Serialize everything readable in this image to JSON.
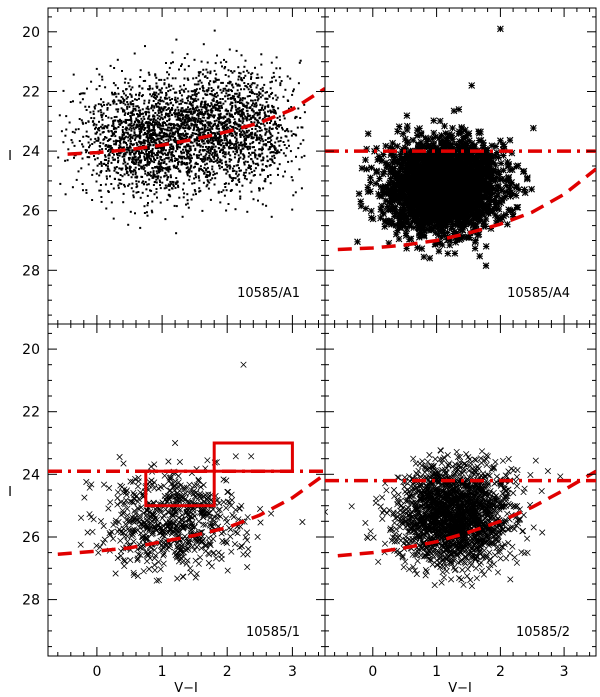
{
  "chart_data": {
    "type": "scatter",
    "xlabel": "V−I",
    "ylabel": "I",
    "xlim": [
      -0.75,
      3.5
    ],
    "ylim": [
      19.2,
      29.8
    ],
    "y_inverted": true,
    "x_ticks": [
      "0",
      "1",
      "2",
      "3"
    ],
    "y_ticks": [
      "20",
      "22",
      "24",
      "26",
      "28"
    ],
    "colors": {
      "points": "#000000",
      "curves": "#e00000"
    },
    "panels": [
      {
        "label": "10585/A1",
        "marker": "dot",
        "points": {
          "count": 3400,
          "components": [
            {
              "weight": 0.55,
              "x_mean": 0.85,
              "x_sd": 0.55,
              "y_mean": 23.6,
              "y_sd": 0.95
            },
            {
              "weight": 0.45,
              "x_mean": 2.05,
              "x_sd": 0.5,
              "y_mean": 23.2,
              "y_sd": 1.0
            }
          ],
          "x_range": [
            -0.6,
            3.2
          ],
          "y_range": [
            19.4,
            27.0
          ]
        },
        "dashed_curve": {
          "x": [
            -0.45,
            0.0,
            0.5,
            1.0,
            1.5,
            2.0,
            2.5,
            3.0,
            3.5
          ],
          "y": [
            24.1,
            24.05,
            23.95,
            23.8,
            23.6,
            23.35,
            23.05,
            22.6,
            21.9
          ]
        }
      },
      {
        "label": "10585/A4",
        "marker": "asterisk",
        "points": {
          "count": 2600,
          "components": [
            {
              "weight": 1.0,
              "x_mean": 1.1,
              "x_sd": 0.45,
              "y_mean": 25.2,
              "y_sd": 0.75
            }
          ],
          "x_range": [
            -0.7,
            3.3
          ],
          "y_range": [
            22.6,
            28.2
          ]
        },
        "outliers": [
          {
            "x": 2.0,
            "y": 19.9
          },
          {
            "x": 1.55,
            "y": 21.8
          },
          {
            "x": 1.35,
            "y": 22.6
          }
        ],
        "dashed_curve": {
          "x": [
            -0.55,
            0.0,
            0.5,
            1.0,
            1.5,
            2.0,
            2.5,
            3.0,
            3.5
          ],
          "y": [
            27.3,
            27.25,
            27.15,
            27.0,
            26.75,
            26.45,
            26.05,
            25.45,
            24.6
          ]
        },
        "dash_dot_line": {
          "y": 24.0
        }
      },
      {
        "label": "10585/1",
        "marker": "x",
        "points": {
          "count": 700,
          "components": [
            {
              "weight": 1.0,
              "x_mean": 1.15,
              "x_sd": 0.55,
              "y_mean": 25.5,
              "y_sd": 0.75
            }
          ],
          "x_range": [
            -0.7,
            3.2
          ],
          "y_range": [
            22.6,
            27.6
          ]
        },
        "outliers": [
          {
            "x": 2.25,
            "y": 20.5
          },
          {
            "x": 1.2,
            "y": 23.0
          }
        ],
        "dashed_curve": {
          "x": [
            -0.6,
            0.0,
            0.5,
            1.0,
            1.5,
            2.0,
            2.5,
            3.0,
            3.5
          ],
          "y": [
            26.55,
            26.45,
            26.35,
            26.15,
            25.95,
            25.7,
            25.3,
            24.75,
            24.0
          ]
        },
        "dash_dot_line": {
          "y": 23.9
        },
        "boxes": [
          {
            "x0": 0.75,
            "x1": 1.8,
            "y0": 23.9,
            "y1": 25.0
          },
          {
            "x0": 1.8,
            "x1": 3.0,
            "y0": 23.0,
            "y1": 23.9
          }
        ]
      },
      {
        "label": "10585/2",
        "marker": "x",
        "points": {
          "count": 2000,
          "components": [
            {
              "weight": 1.0,
              "x_mean": 1.25,
              "x_sd": 0.45,
              "y_mean": 25.3,
              "y_sd": 0.8
            }
          ],
          "x_range": [
            -0.5,
            3.0
          ],
          "y_range": [
            23.2,
            27.6
          ]
        },
        "outliers": [
          {
            "x": -0.75,
            "y": 25.2
          }
        ],
        "dashed_curve": {
          "x": [
            -0.55,
            0.0,
            0.5,
            1.0,
            1.5,
            2.0,
            2.5,
            3.0,
            3.5
          ],
          "y": [
            26.6,
            26.5,
            26.35,
            26.15,
            25.85,
            25.5,
            25.05,
            24.5,
            23.9
          ]
        },
        "dash_dot_line": {
          "y": 24.2
        }
      }
    ]
  }
}
